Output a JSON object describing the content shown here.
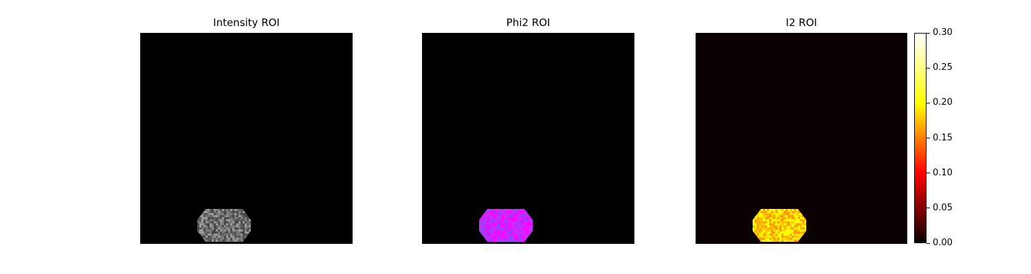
{
  "chart_data": [
    {
      "type": "heatmap",
      "title": "Intensity ROI",
      "colormap": "gray",
      "axes": "off",
      "background_color": "#000000",
      "roi_colors": [
        "#5a5a5a",
        "#7a7a7a",
        "#9a9a9a",
        "#484848"
      ]
    },
    {
      "type": "heatmap",
      "title": "Phi2 ROI",
      "colormap": "magenta-purple",
      "axes": "off",
      "background_color": "#000000",
      "roi_colors": [
        "#ff00ff",
        "#e020ff",
        "#b830ff",
        "#9a40ff"
      ]
    },
    {
      "type": "heatmap",
      "title": "I2 ROI",
      "colormap": "hot",
      "axes": "off",
      "background_color": "#0a0000",
      "roi_colors": [
        "#ffff00",
        "#ffdd00",
        "#ffbb00",
        "#ff9900"
      ],
      "colorbar": {
        "min": 0.0,
        "max": 0.3,
        "ticks": [
          "0.00",
          "0.05",
          "0.10",
          "0.15",
          "0.20",
          "0.25",
          "0.30"
        ],
        "colors": [
          "#0a0000",
          "#ff0000",
          "#ffff00",
          "#ffffff"
        ]
      }
    }
  ]
}
